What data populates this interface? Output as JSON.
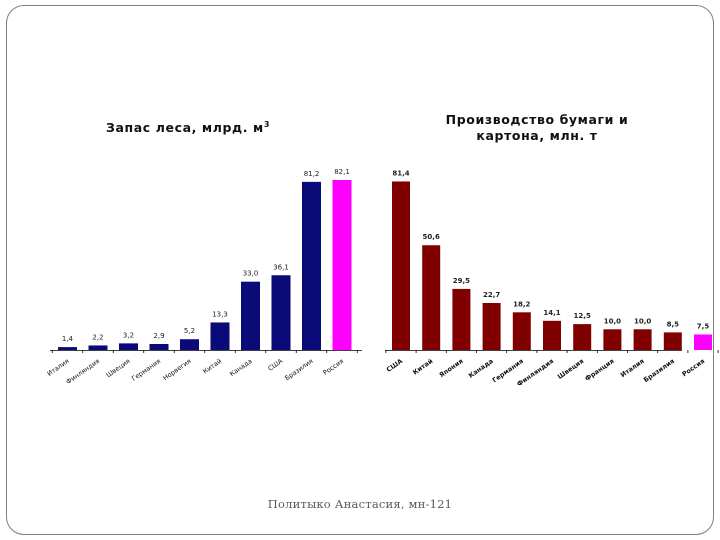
{
  "footer": {
    "author": "Политыко Анастасия, мн-121"
  },
  "chart_data": [
    {
      "id": "forest",
      "type": "bar",
      "title": "Запас леса, млрд. м",
      "title_sup": "3",
      "categories": [
        "Италия",
        "Финляндия",
        "Швеция",
        "Германия",
        "Норвегия",
        "Китай",
        "Канада",
        "США",
        "Бразилия",
        "Россия"
      ],
      "values": [
        1.4,
        2.2,
        3.2,
        2.9,
        5.2,
        13.3,
        33.0,
        36.1,
        81.2,
        82.1
      ],
      "labels": [
        "1,4",
        "2,2",
        "3,2",
        "2,9",
        "5,2",
        "13,3",
        "33,0",
        "36,1",
        "81,2",
        "82,1"
      ],
      "colors": [
        "#0a0a78",
        "#0a0a78",
        "#0a0a78",
        "#0a0a78",
        "#0a0a78",
        "#0a0a78",
        "#0a0a78",
        "#0a0a78",
        "#0a0a78",
        "#ff00ff"
      ],
      "ylim": [
        0,
        85
      ],
      "grid": false,
      "legend": "none"
    },
    {
      "id": "paper",
      "type": "bar",
      "title": "Производство бумаги и картона, млн. т",
      "title_lines": [
        "Производство бумаги и",
        "картона, млн. т"
      ],
      "categories": [
        "США",
        "Китай",
        "Япония",
        "Канада",
        "Германия",
        "Финляндия",
        "Швеция",
        "Франция",
        "Италия",
        "Бразилия",
        "Россия"
      ],
      "values": [
        81.4,
        50.6,
        29.5,
        22.7,
        18.2,
        14.1,
        12.5,
        10.0,
        10.0,
        8.5,
        7.5
      ],
      "labels": [
        "81,4",
        "50,6",
        "29,5",
        "22,7",
        "18,2",
        "14,1",
        "12,5",
        "10,0",
        "10,0",
        "8,5",
        "7,5"
      ],
      "colors": [
        "#800000",
        "#800000",
        "#800000",
        "#800000",
        "#800000",
        "#800000",
        "#800000",
        "#800000",
        "#800000",
        "#800000",
        "#ff00ff"
      ],
      "ylim": [
        0,
        85
      ],
      "grid": false,
      "legend": "none"
    }
  ]
}
